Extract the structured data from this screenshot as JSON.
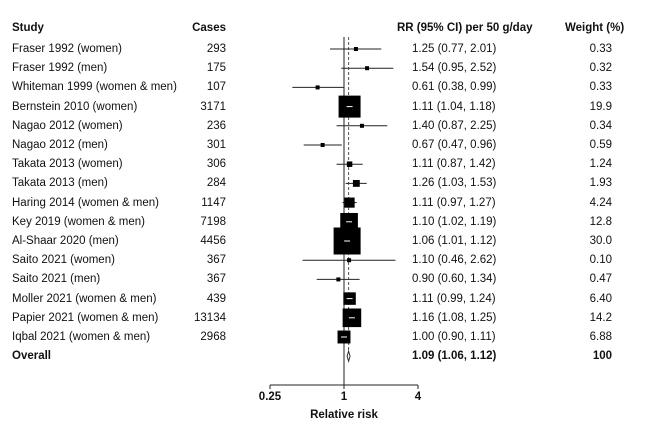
{
  "headers": {
    "study": "Study",
    "cases": "Cases",
    "rr": "RR (95% CI) per 50 g/day",
    "weight": "Weight (%)"
  },
  "chart_data": {
    "type": "forest",
    "xlabel": "Relative risk",
    "x_scale": "log",
    "xlim": [
      0.25,
      4
    ],
    "x_ticks": [
      "0.25",
      "1",
      "4"
    ],
    "x_tick_values": [
      0.25,
      1,
      4
    ],
    "reference_line": 1,
    "overall_line": 1.09,
    "studies": [
      {
        "name": "Fraser 1992 (women)",
        "cases": "293",
        "rr": 1.25,
        "lo": 0.77,
        "hi": 2.01,
        "ci_text": "1.25 (0.77, 2.01)",
        "weight": 0.33,
        "weight_text": "0.33"
      },
      {
        "name": "Fraser 1992 (men)",
        "cases": "175",
        "rr": 1.54,
        "lo": 0.95,
        "hi": 2.52,
        "ci_text": "1.54 (0.95, 2.52)",
        "weight": 0.32,
        "weight_text": "0.32"
      },
      {
        "name": "Whiteman 1999 (women & men)",
        "cases": "107",
        "rr": 0.61,
        "lo": 0.38,
        "hi": 0.99,
        "ci_text": "0.61 (0.38, 0.99)",
        "weight": 0.33,
        "weight_text": "0.33"
      },
      {
        "name": "Bernstein 2010 (women)",
        "cases": "3171",
        "rr": 1.11,
        "lo": 1.04,
        "hi": 1.18,
        "ci_text": "1.11 (1.04, 1.18)",
        "weight": 19.9,
        "weight_text": "19.9"
      },
      {
        "name": "Nagao 2012 (women)",
        "cases": "236",
        "rr": 1.4,
        "lo": 0.87,
        "hi": 2.25,
        "ci_text": "1.40 (0.87, 2.25)",
        "weight": 0.34,
        "weight_text": "0.34"
      },
      {
        "name": "Nagao 2012 (men)",
        "cases": "301",
        "rr": 0.67,
        "lo": 0.47,
        "hi": 0.96,
        "ci_text": "0.67 (0.47, 0.96)",
        "weight": 0.59,
        "weight_text": "0.59"
      },
      {
        "name": "Takata 2013 (women)",
        "cases": "306",
        "rr": 1.11,
        "lo": 0.87,
        "hi": 1.42,
        "ci_text": "1.11 (0.87, 1.42)",
        "weight": 1.24,
        "weight_text": "1.24"
      },
      {
        "name": "Takata 2013 (men)",
        "cases": "284",
        "rr": 1.26,
        "lo": 1.03,
        "hi": 1.53,
        "ci_text": "1.26 (1.03, 1.53)",
        "weight": 1.93,
        "weight_text": "1.93"
      },
      {
        "name": "Haring 2014 (women & men)",
        "cases": "1147",
        "rr": 1.11,
        "lo": 0.97,
        "hi": 1.27,
        "ci_text": "1.11 (0.97, 1.27)",
        "weight": 4.24,
        "weight_text": "4.24"
      },
      {
        "name": "Key 2019 (women & men)",
        "cases": "7198",
        "rr": 1.1,
        "lo": 1.02,
        "hi": 1.19,
        "ci_text": "1.10 (1.02, 1.19)",
        "weight": 12.8,
        "weight_text": "12.8"
      },
      {
        "name": "Al-Shaar 2020 (men)",
        "cases": "4456",
        "rr": 1.06,
        "lo": 1.01,
        "hi": 1.12,
        "ci_text": "1.06 (1.01, 1.12)",
        "weight": 30.0,
        "weight_text": "30.0"
      },
      {
        "name": "Saito 2021 (women)",
        "cases": "367",
        "rr": 1.1,
        "lo": 0.46,
        "hi": 2.62,
        "ci_text": "1.10 (0.46, 2.62)",
        "weight": 0.1,
        "weight_text": "0.10"
      },
      {
        "name": "Saito 2021 (men)",
        "cases": "367",
        "rr": 0.9,
        "lo": 0.6,
        "hi": 1.34,
        "ci_text": "0.90 (0.60, 1.34)",
        "weight": 0.47,
        "weight_text": "0.47"
      },
      {
        "name": "Moller 2021 (women & men)",
        "cases": "439",
        "rr": 1.11,
        "lo": 0.99,
        "hi": 1.24,
        "ci_text": "1.11 (0.99, 1.24)",
        "weight": 6.4,
        "weight_text": "6.40"
      },
      {
        "name": "Papier 2021 (women & men)",
        "cases": "13134",
        "rr": 1.16,
        "lo": 1.08,
        "hi": 1.25,
        "ci_text": "1.16 (1.08, 1.25)",
        "weight": 14.2,
        "weight_text": "14.2"
      },
      {
        "name": "Iqbal 2021 (women & men)",
        "cases": "2968",
        "rr": 1.0,
        "lo": 0.9,
        "hi": 1.11,
        "ci_text": "1.00 (0.90, 1.11)",
        "weight": 6.88,
        "weight_text": "6.88"
      }
    ],
    "overall": {
      "name": "Overall",
      "rr": 1.09,
      "lo": 1.06,
      "hi": 1.12,
      "ci_text": "1.09 (1.06, 1.12)",
      "weight_text": "100"
    }
  }
}
